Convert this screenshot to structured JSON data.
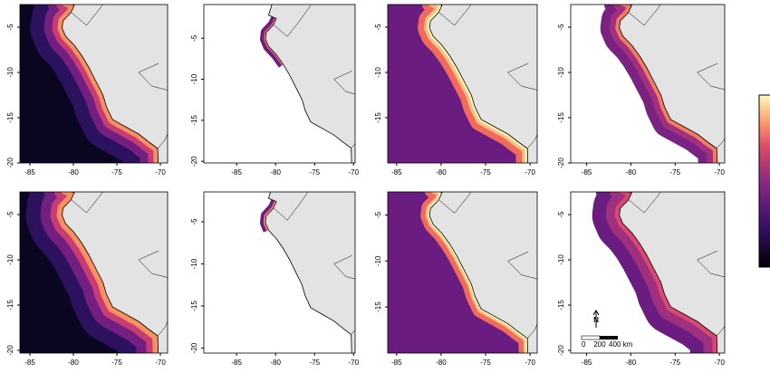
{
  "panels": [
    {
      "xlim": [
        -86.15,
        -69.17
      ],
      "ylim": [
        -20,
        -2.5
      ],
      "xticks": [
        -85,
        -80,
        -75,
        -70
      ],
      "yticks": [
        -5,
        -10,
        -15,
        -20
      ]
    },
    {
      "xlim": [
        -89.2,
        -69.8
      ],
      "ylim": [
        -20.2,
        -0.9
      ],
      "xticks": [
        -85,
        -80,
        -75,
        -70
      ],
      "yticks": [
        -5,
        -10,
        -15,
        -20
      ]
    },
    {
      "xlim": [
        -86.0,
        -69.2
      ],
      "ylim": [
        -20,
        -2.5
      ],
      "xticks": [
        -85,
        -80,
        -75,
        -70
      ],
      "yticks": [
        -5,
        -10,
        -15
      ]
    },
    {
      "xlim": [
        -86.8,
        -69.4
      ],
      "ylim": [
        -20,
        -2.5
      ],
      "xticks": [
        -85,
        -80,
        -75,
        -70
      ],
      "yticks": [
        -5,
        -10,
        -15,
        -20
      ]
    },
    {
      "xlim": [
        -86.15,
        -69.17
      ],
      "ylim": [
        -20.3,
        -2.5
      ],
      "xticks": [
        -85,
        -80,
        -75,
        -70
      ],
      "yticks": [
        -5,
        -10,
        -15,
        -20
      ]
    },
    {
      "xlim": [
        -89.2,
        -69.8
      ],
      "ylim": [
        -20.6,
        -1.45
      ],
      "xticks": [
        -85,
        -80,
        -75,
        -70
      ],
      "yticks": [
        -5,
        -10,
        -15,
        -20
      ]
    },
    {
      "xlim": [
        -86.0,
        -69.2
      ],
      "ylim": [
        -20,
        -2.5
      ],
      "xticks": [
        -85,
        -80,
        -75,
        -70
      ],
      "yticks": [
        -5,
        -10,
        -15
      ]
    },
    {
      "xlim": [
        -86.8,
        -69.4
      ],
      "ylim": [
        -20.3,
        -2.5
      ],
      "xticks": [
        -85,
        -80,
        -75,
        -70
      ],
      "yticks": [
        -5,
        -10,
        -15,
        -20
      ]
    }
  ],
  "north_label": "N",
  "scale_bar": {
    "labels": [
      "0",
      "200",
      "400 km"
    ]
  }
}
